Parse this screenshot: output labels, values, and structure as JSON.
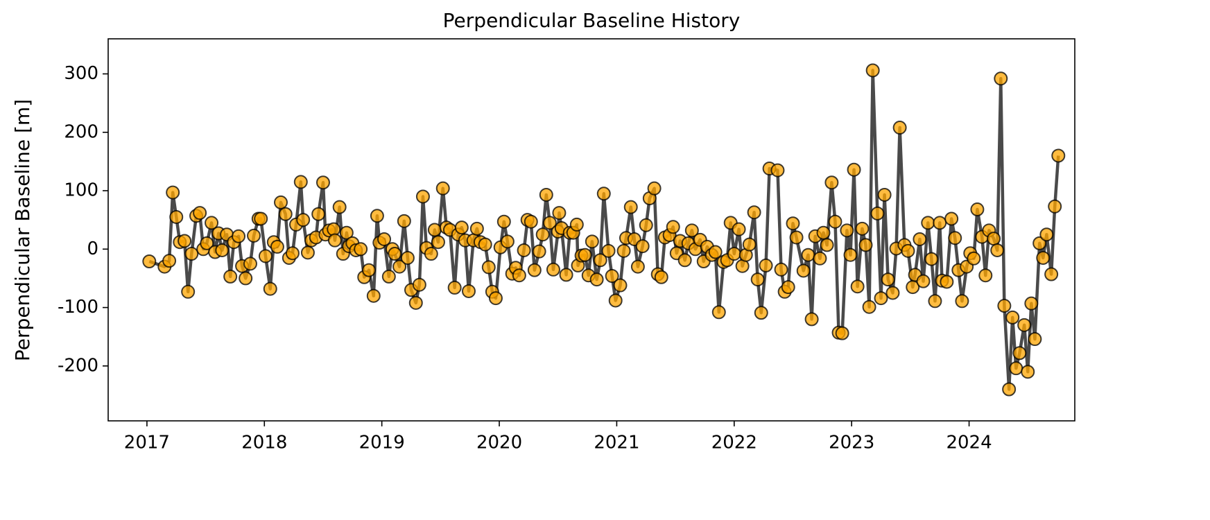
{
  "chart_data": {
    "type": "line",
    "title": "Perpendicular Baseline History",
    "y_label": "Perpendicular Baseline [m]",
    "xlim": [
      2016.67,
      2024.9
    ],
    "xticks": [
      2017,
      2018,
      2019,
      2020,
      2021,
      2022,
      2023,
      2024
    ],
    "ylim": [
      -294,
      360
    ],
    "yticks": [
      -200,
      -100,
      0,
      100,
      200,
      300
    ],
    "series": [
      {
        "name": "Perpendicular Baseline",
        "color": "#ffa500",
        "line_color": "#404040",
        "x": [
          2017.02,
          2017.15,
          2017.19,
          2017.22,
          2017.25,
          2017.28,
          2017.32,
          2017.35,
          2017.38,
          2017.42,
          2017.45,
          2017.48,
          2017.51,
          2017.55,
          2017.58,
          2017.61,
          2017.64,
          2017.68,
          2017.71,
          2017.74,
          2017.78,
          2017.81,
          2017.84,
          2017.88,
          2017.91,
          2017.95,
          2017.97,
          2018.01,
          2018.05,
          2018.08,
          2018.11,
          2018.14,
          2018.18,
          2018.21,
          2018.24,
          2018.27,
          2018.31,
          2018.33,
          2018.37,
          2018.4,
          2018.44,
          2018.46,
          2018.5,
          2018.52,
          2018.55,
          2018.59,
          2018.6,
          2018.64,
          2018.67,
          2018.7,
          2018.72,
          2018.75,
          2018.78,
          2018.82,
          2018.85,
          2018.89,
          2018.93,
          2018.96,
          2018.98,
          2019.02,
          2019.06,
          2019.09,
          2019.11,
          2019.15,
          2019.19,
          2019.22,
          2019.25,
          2019.29,
          2019.32,
          2019.35,
          2019.38,
          2019.42,
          2019.45,
          2019.48,
          2019.52,
          2019.55,
          2019.58,
          2019.62,
          2019.65,
          2019.68,
          2019.71,
          2019.74,
          2019.78,
          2019.81,
          2019.84,
          2019.88,
          2019.91,
          2019.94,
          2019.97,
          2020.01,
          2020.04,
          2020.07,
          2020.11,
          2020.14,
          2020.17,
          2020.21,
          2020.24,
          2020.27,
          2020.3,
          2020.34,
          2020.37,
          2020.4,
          2020.43,
          2020.46,
          2020.5,
          2020.51,
          2020.53,
          2020.57,
          2020.6,
          2020.63,
          2020.66,
          2020.67,
          2020.7,
          2020.73,
          2020.76,
          2020.79,
          2020.83,
          2020.86,
          2020.89,
          2020.93,
          2020.96,
          2020.99,
          2021.03,
          2021.06,
          2021.08,
          2021.12,
          2021.15,
          2021.18,
          2021.22,
          2021.25,
          2021.28,
          2021.32,
          2021.35,
          2021.38,
          2021.41,
          2021.45,
          2021.48,
          2021.51,
          2021.54,
          2021.58,
          2021.61,
          2021.64,
          2021.67,
          2021.71,
          2021.74,
          2021.77,
          2021.81,
          2021.84,
          2021.87,
          2021.91,
          2021.94,
          2021.97,
          2022.0,
          2022.04,
          2022.07,
          2022.1,
          2022.13,
          2022.17,
          2022.2,
          2022.23,
          2022.27,
          2022.3,
          2022.37,
          2022.4,
          2022.43,
          2022.46,
          2022.5,
          2022.53,
          2022.59,
          2022.63,
          2022.66,
          2022.69,
          2022.73,
          2022.76,
          2022.79,
          2022.83,
          2022.86,
          2022.89,
          2022.92,
          2022.96,
          2022.99,
          2023.02,
          2023.05,
          2023.09,
          2023.12,
          2023.15,
          2023.18,
          2023.22,
          2023.25,
          2023.28,
          2023.31,
          2023.35,
          2023.38,
          2023.41,
          2023.45,
          2023.48,
          2023.52,
          2023.54,
          2023.58,
          2023.61,
          2023.65,
          2023.68,
          2023.71,
          2023.75,
          2023.77,
          2023.81,
          2023.85,
          2023.88,
          2023.91,
          2023.94,
          2023.98,
          2024.01,
          2024.04,
          2024.07,
          2024.11,
          2024.14,
          2024.17,
          2024.21,
          2024.24,
          2024.27,
          2024.3,
          2024.34,
          2024.37,
          2024.4,
          2024.43,
          2024.47,
          2024.5,
          2024.53,
          2024.56,
          2024.6,
          2024.63,
          2024.66,
          2024.7,
          2024.73,
          2024.76
        ],
        "values": [
          -21,
          -30,
          -20,
          97,
          55,
          12,
          14,
          -73,
          -8,
          57,
          62,
          0,
          10,
          45,
          -5,
          27,
          -2,
          25,
          -47,
          12,
          22,
          -29,
          -50,
          -25,
          23,
          52,
          52,
          -12,
          -68,
          12,
          4,
          80,
          60,
          -15,
          -7,
          42,
          115,
          50,
          -6,
          15,
          20,
          60,
          114,
          25,
          32,
          34,
          15,
          72,
          -8,
          28,
          5,
          10,
          -2,
          0,
          -48,
          -36,
          -80,
          57,
          11,
          17,
          -47,
          0,
          -8,
          -30,
          48,
          -15,
          -70,
          -92,
          -61,
          90,
          2,
          -8,
          33,
          12,
          104,
          37,
          33,
          -66,
          25,
          37,
          15,
          -72,
          15,
          35,
          12,
          8,
          -31,
          -73,
          -84,
          3,
          47,
          13,
          -42,
          -32,
          -45,
          -2,
          50,
          47,
          -36,
          -4,
          25,
          93,
          45,
          -35,
          30,
          62,
          36,
          -44,
          28,
          28,
          42,
          -28,
          -11,
          -10,
          -45,
          13,
          -52,
          -19,
          95,
          -3,
          -46,
          -88,
          -62,
          -3,
          19,
          72,
          17,
          -30,
          5,
          41,
          87,
          104,
          -43,
          -48,
          20,
          24,
          38,
          -7,
          14,
          -19,
          10,
          32,
          0,
          16,
          -21,
          4,
          -10,
          -5,
          -108,
          -22,
          -19,
          45,
          -8,
          34,
          -29,
          -10,
          8,
          63,
          -52,
          -109,
          -28,
          138,
          135,
          -35,
          -73,
          -65,
          44,
          20,
          -37,
          -10,
          -120,
          22,
          -16,
          28,
          7,
          114,
          47,
          -143,
          -144,
          32,
          -10,
          136,
          -64,
          35,
          7,
          -99,
          306,
          61,
          -84,
          93,
          -52,
          -75,
          1,
          208,
          7,
          -3,
          -65,
          -44,
          17,
          -55,
          45,
          -17,
          -89,
          45,
          -54,
          -56,
          52,
          19,
          -36,
          -89,
          -30,
          -7,
          -16,
          68,
          21,
          -45,
          32,
          18,
          -2,
          292,
          -97,
          -240,
          -117,
          -204,
          -178,
          -130,
          -210,
          -93,
          -154,
          10,
          -15,
          25,
          -43,
          73,
          160
        ]
      }
    ]
  }
}
